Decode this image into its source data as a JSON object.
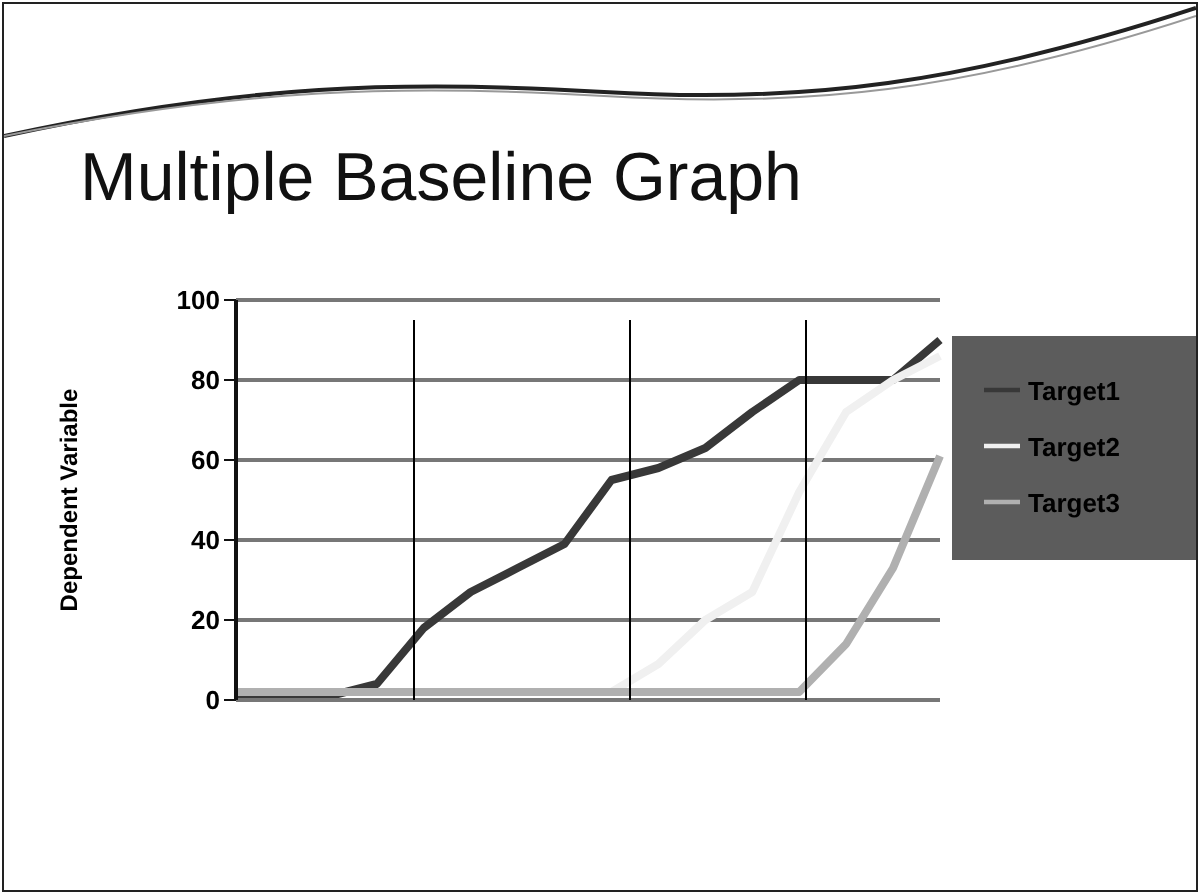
{
  "chart_data": {
    "type": "line",
    "title": "Multiple Baseline Graph",
    "ylabel": "Dependent Variable",
    "categories": [
      null,
      null,
      null,
      null,
      null,
      null,
      null,
      null,
      null,
      null,
      null,
      null,
      null,
      null,
      null,
      null
    ],
    "series": [
      {
        "name": "Target1",
        "color": "#383838",
        "values": [
          1,
          1,
          1,
          4,
          18,
          27,
          33,
          39,
          55,
          58,
          63,
          72,
          80,
          80,
          80,
          90
        ]
      },
      {
        "name": "Target2",
        "color": "#f0f0f0",
        "values": [
          2,
          2,
          2,
          2,
          2,
          2,
          2,
          2,
          2,
          9,
          20,
          27,
          52,
          72,
          80,
          86
        ]
      },
      {
        "name": "Target3",
        "color": "#b0b0b0",
        "values": [
          2,
          2,
          2,
          2,
          2,
          2,
          2,
          2,
          2,
          2,
          2,
          2,
          2,
          14,
          33,
          61
        ]
      }
    ],
    "ylim": [
      0,
      100
    ],
    "yticks": [
      0,
      20,
      40,
      60,
      80,
      100
    ],
    "tick_labels": "y",
    "grid": "y",
    "legend": "right",
    "marker": "none",
    "line_style": "solid"
  }
}
